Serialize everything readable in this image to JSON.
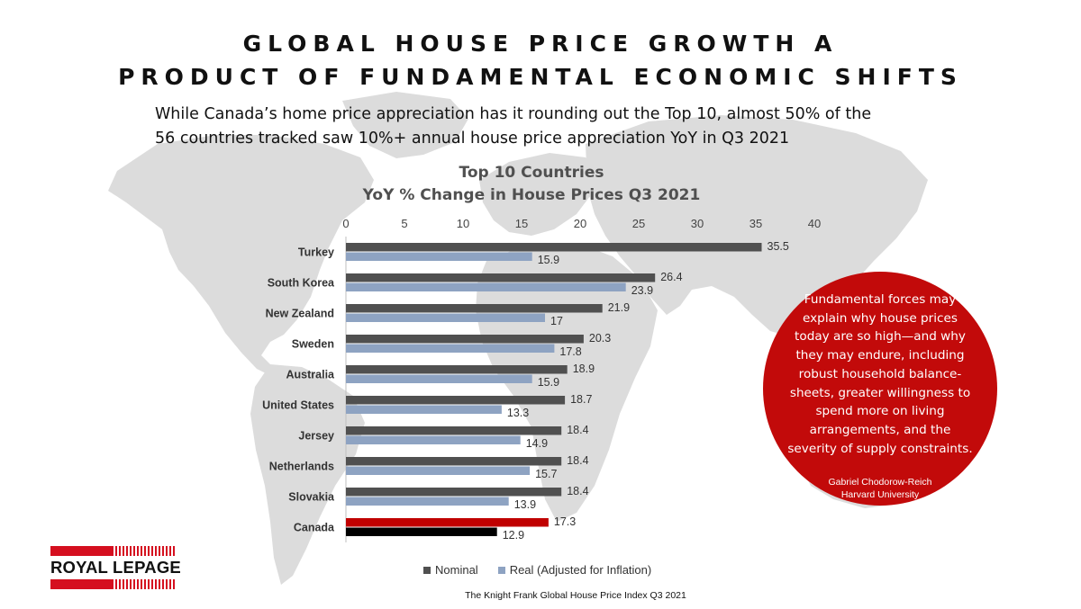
{
  "title": {
    "line1": "GLOBAL HOUSE PRICE GROWTH A",
    "line2": "PRODUCT OF FUNDAMENTAL ECONOMIC SHIFTS"
  },
  "subtitle": {
    "line1": "While Canada’s home price appreciation has it rounding out the Top 10, almost 50% of the",
    "line2": "56 countries tracked saw 10%+ annual house price appreciation YoY in Q3 2021"
  },
  "quote": {
    "lines": [
      "Fundamental forces may",
      "explain why house prices",
      "today are so high—and why",
      "they may endure, including",
      "robust household balance-",
      "sheets, greater willingness to",
      "spend more on living",
      "arrangements, and the",
      "severity of supply constraints."
    ],
    "author": "Gabriel Chodorow-Reich",
    "affiliation": "Harvard University"
  },
  "source": "The Knight Frank Global House Price Index Q3 2021",
  "logo": {
    "text": "ROYAL LEPAGE"
  },
  "colors": {
    "nominal": "#505050",
    "real": "#8ea3c2",
    "canada_nominal": "#c00000",
    "canada_real": "#000000",
    "map": "#dcdcdc",
    "accent": "#c20a0a"
  },
  "chart_data": {
    "type": "bar",
    "orientation": "horizontal",
    "title_line1": "Top 10 Countries",
    "title_line2": "YoY % Change in House Prices Q3 2021",
    "categories": [
      "Turkey",
      "South Korea",
      "New Zealand",
      "Sweden",
      "Australia",
      "United States",
      "Jersey",
      "Netherlands",
      "Slovakia",
      "Canada"
    ],
    "series": [
      {
        "name": "Nominal",
        "values": [
          35.5,
          26.4,
          21.9,
          20.3,
          18.9,
          18.7,
          18.4,
          18.4,
          18.4,
          17.3
        ],
        "color": "#505050"
      },
      {
        "name": "Real (Adjusted for Inflation)",
        "values": [
          15.9,
          23.9,
          17,
          17.8,
          15.9,
          13.3,
          14.9,
          15.7,
          13.9,
          12.9
        ],
        "color": "#8ea3c2"
      }
    ],
    "value_labels": [
      [
        "35.5",
        "26.4",
        "21.9",
        "20.3",
        "18.9",
        "18.7",
        "18.4",
        "18.4",
        "18.4",
        "17.3"
      ],
      [
        "15.9",
        "23.9",
        "17",
        "17.8",
        "15.9",
        "13.3",
        "14.9",
        "15.7",
        "13.9",
        "12.9"
      ]
    ],
    "highlight": {
      "category": "Canada",
      "nominal_color": "#c00000",
      "real_color": "#000000"
    },
    "xlim": [
      0,
      40
    ],
    "xticks": [
      0,
      5,
      10,
      15,
      20,
      25,
      30,
      35,
      40
    ],
    "axis_position": "top",
    "legend_position": "bottom",
    "grid": false
  }
}
